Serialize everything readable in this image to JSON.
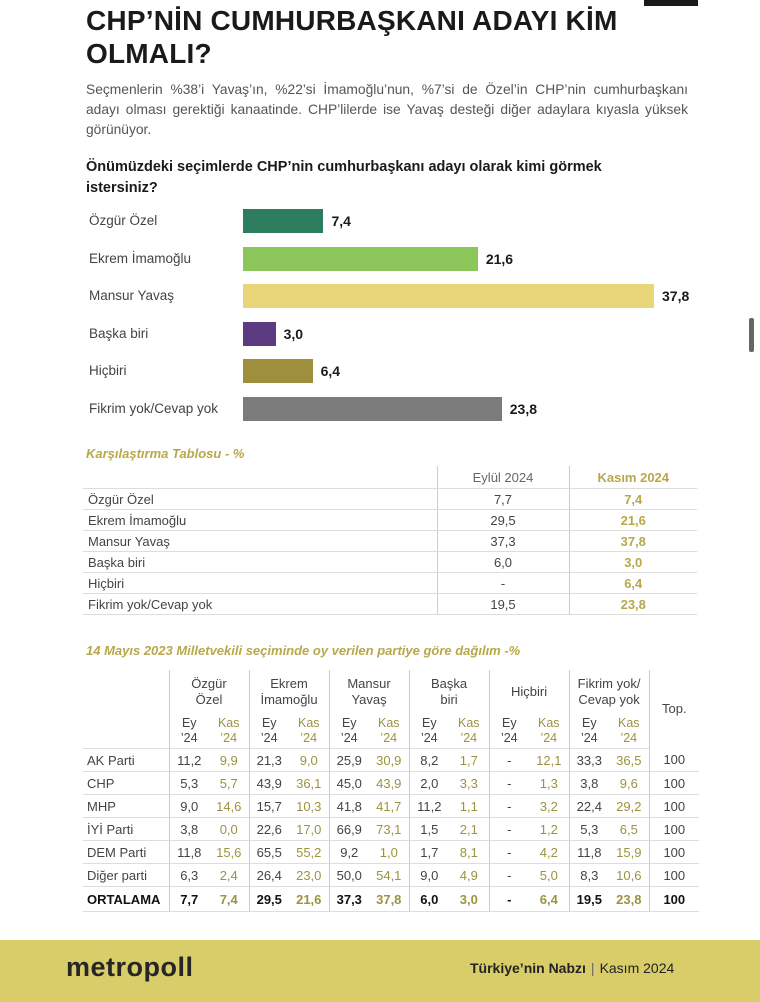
{
  "title": "CHP’NİN CUMHURBAŞKANI ADAYI KİM OLMALI?",
  "intro": "Seçmenlerin %38’i Yavaş’ın, %22’si İmamoğlu’nun, %7’si de Özel’in CHP’nin cumhurbaşkanı adayı olması gerektiği kanaatinde. CHP’lilerde ise Yavaş desteği diğer adaylara kıyasla yüksek görünüyor.",
  "question": "Önümüzdeki seçimlerde CHP’nin cumhurbaşkanı adayı olarak kimi görmek istersiniz?",
  "chart_data": {
    "type": "bar",
    "orientation": "horizontal",
    "title": "Önümüzdeki seçimlerde CHP’nin cumhurbaşkanı adayı olarak kimi görmek istersiniz?",
    "categories": [
      "Özgür Özel",
      "Ekrem İmamoğlu",
      "Mansur Yavaş",
      "Başka biri",
      "Hiçbiri",
      "Fikrim yok/Cevap yok"
    ],
    "values": [
      7.4,
      21.6,
      37.8,
      3.0,
      6.4,
      23.8
    ],
    "value_labels": [
      "7,4",
      "21,6",
      "37,8",
      "3,0",
      "6,4",
      "23,8"
    ],
    "colors": [
      "#2e7d5e",
      "#8cc55a",
      "#e8d678",
      "#5d3b82",
      "#9e8f3c",
      "#7b7b7b"
    ],
    "xlim": [
      0,
      37.8
    ]
  },
  "comparison": {
    "title": "Karşılaştırma Tablosu - %",
    "col1": "Eylül 2024",
    "col2": "Kasım 2024",
    "rows": [
      {
        "label": "Özgür Özel",
        "v1": "7,7",
        "v2": "7,4"
      },
      {
        "label": "Ekrem İmamoğlu",
        "v1": "29,5",
        "v2": "21,6"
      },
      {
        "label": "Mansur Yavaş",
        "v1": "37,3",
        "v2": "37,8"
      },
      {
        "label": "Başka biri",
        "v1": "6,0",
        "v2": "3,0"
      },
      {
        "label": "Hiçbiri",
        "v1": "-",
        "v2": "6,4"
      },
      {
        "label": "Fikrim yok/Cevap yok",
        "v1": "19,5",
        "v2": "23,8"
      }
    ]
  },
  "distribution": {
    "title": "14 Mayıs 2023 Milletvekili seçiminde oy verilen partiye göre dağılım -%",
    "groups": [
      {
        "l1": "Özgür",
        "l2": "Özel"
      },
      {
        "l1": "Ekrem",
        "l2": "İmamoğlu"
      },
      {
        "l1": "Mansur",
        "l2": "Yavaş"
      },
      {
        "l1": "Başka",
        "l2": "biri"
      },
      {
        "l1": "Hiçbiri",
        "l2": ""
      },
      {
        "l1": "Fikrim yok/",
        "l2": "Cevap yok"
      }
    ],
    "total_label": "Top.",
    "sub_ey": "Ey",
    "sub_kas": "Kas",
    "sub_year": "’24",
    "rows": [
      {
        "label": "AK Parti",
        "cells": [
          "11,2",
          "9,9",
          "21,3",
          "9,0",
          "25,9",
          "30,9",
          "8,2",
          "1,7",
          "-",
          "12,1",
          "33,3",
          "36,5"
        ],
        "total": "100"
      },
      {
        "label": "CHP",
        "cells": [
          "5,3",
          "5,7",
          "43,9",
          "36,1",
          "45,0",
          "43,9",
          "2,0",
          "3,3",
          "-",
          "1,3",
          "3,8",
          "9,6"
        ],
        "total": "100"
      },
      {
        "label": "MHP",
        "cells": [
          "9,0",
          "14,6",
          "15,7",
          "10,3",
          "41,8",
          "41,7",
          "11,2",
          "1,1",
          "-",
          "3,2",
          "22,4",
          "29,2"
        ],
        "total": "100"
      },
      {
        "label": "İYİ Parti",
        "cells": [
          "3,8",
          "0,0",
          "22,6",
          "17,0",
          "66,9",
          "73,1",
          "1,5",
          "2,1",
          "-",
          "1,2",
          "5,3",
          "6,5"
        ],
        "total": "100"
      },
      {
        "label": "DEM Parti",
        "cells": [
          "11,8",
          "15,6",
          "65,5",
          "55,2",
          "9,2",
          "1,0",
          "1,7",
          "8,1",
          "-",
          "4,2",
          "11,8",
          "15,9"
        ],
        "total": "100"
      },
      {
        "label": "Diğer parti",
        "cells": [
          "6,3",
          "2,4",
          "26,4",
          "23,0",
          "50,0",
          "54,1",
          "9,0",
          "4,9",
          "-",
          "5,0",
          "8,3",
          "10,6"
        ],
        "total": "100"
      },
      {
        "label": "ORTALAMA",
        "cells": [
          "7,7",
          "7,4",
          "29,5",
          "21,6",
          "37,3",
          "37,8",
          "6,0",
          "3,0",
          "-",
          "6,4",
          "19,5",
          "23,8"
        ],
        "total": "100"
      }
    ]
  },
  "footer": {
    "logo": "metropoll",
    "tagline": "Türkiye’nin Nabzı",
    "separator": "|",
    "date": "Kasım 2024",
    "background": "#d9cd6a"
  }
}
